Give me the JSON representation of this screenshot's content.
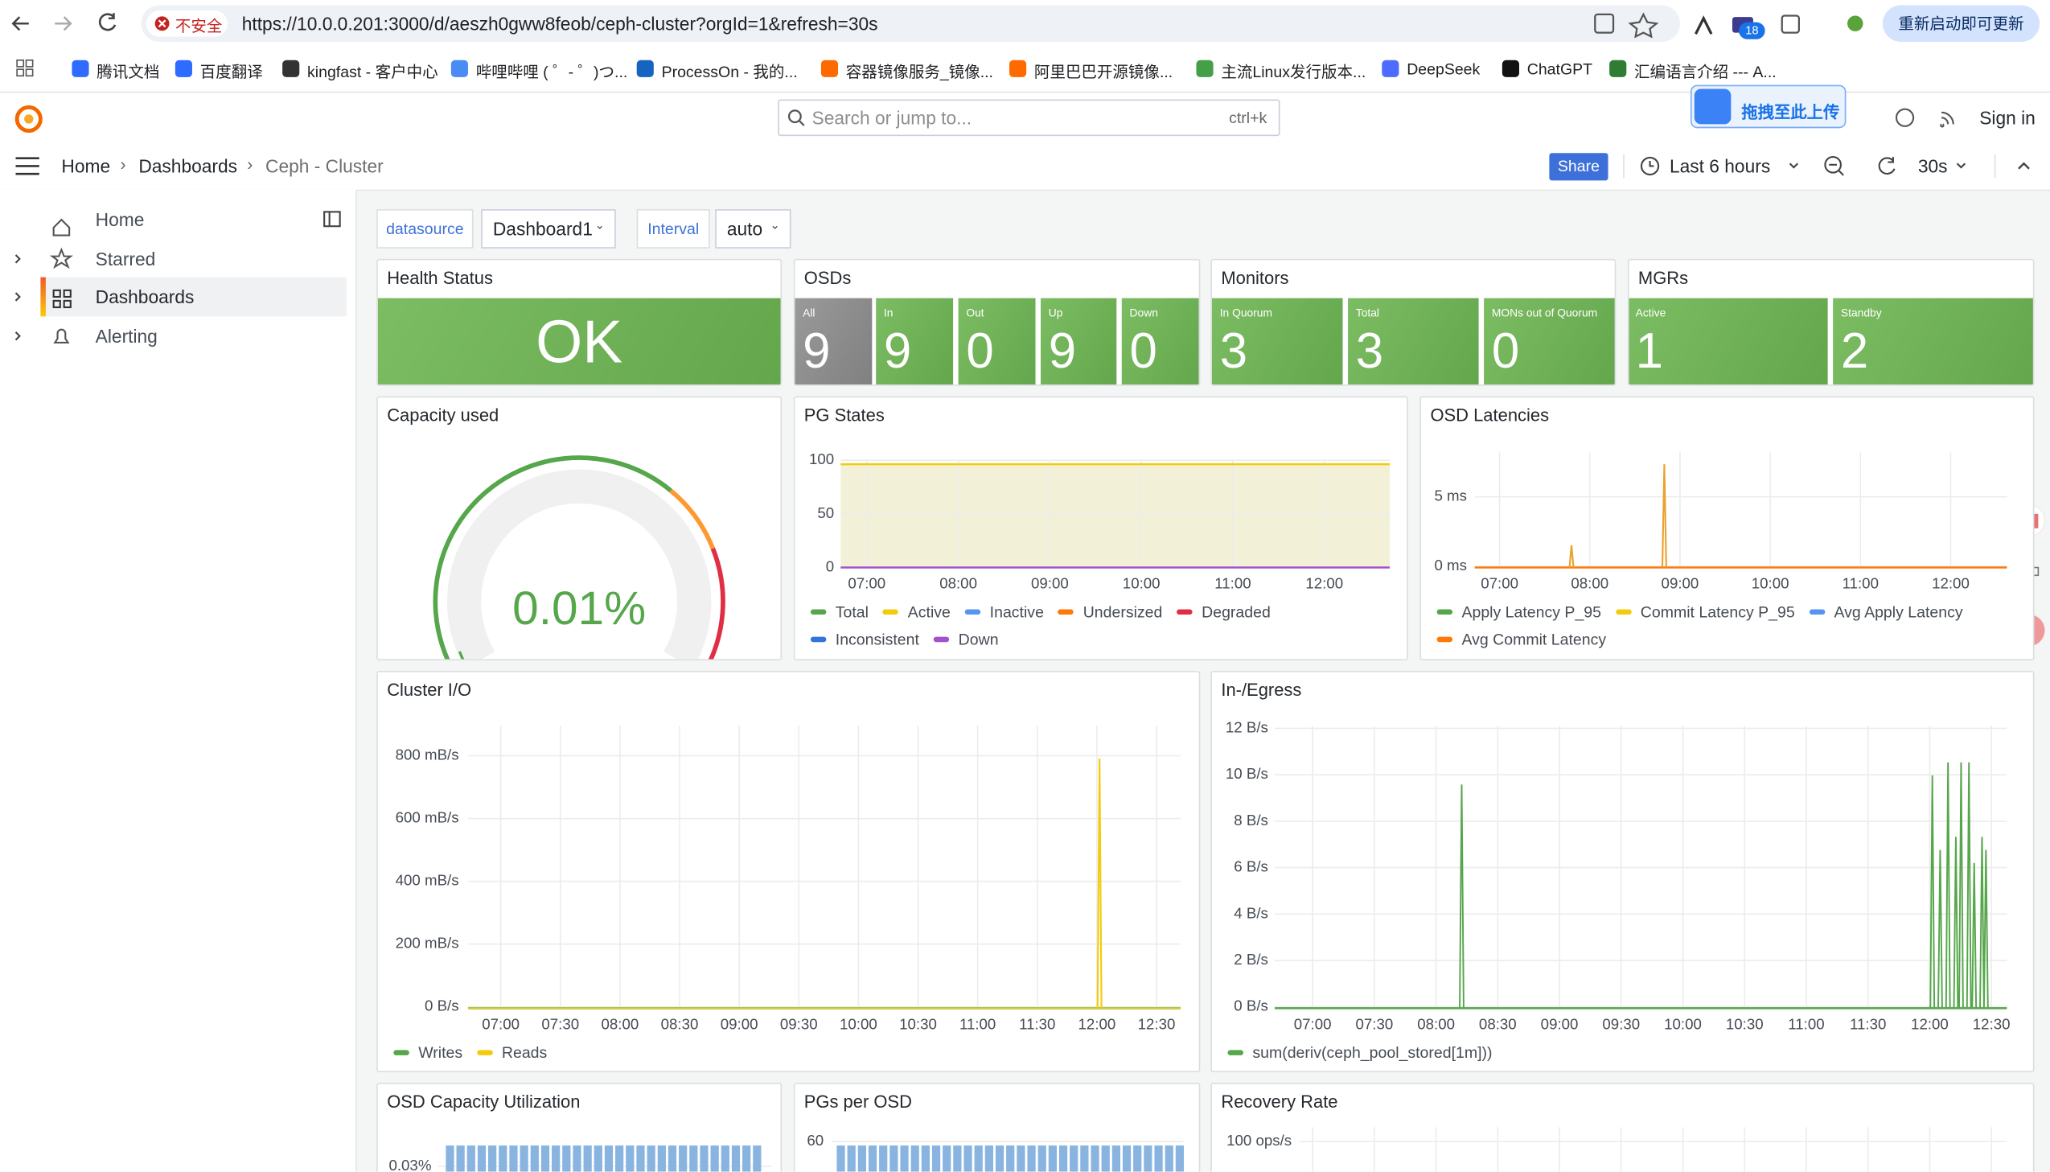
{
  "browser": {
    "insecure": "不安全",
    "url": "https://10.0.0.201:3000/d/aeszh0gww8feob/ceph-cluster?orgId=1&refresh=30s",
    "badge": "18",
    "update": "重新启动即可更新",
    "bookmarks": [
      "腾讯文档",
      "百度翻译",
      "kingfast - 客户中心",
      "哔哩哔哩 ( ゜- ゜)つ...",
      "ProcessOn - 我的...",
      "容器镜像服务_镜像...",
      "阿里巴巴开源镜像...",
      "主流Linux发行版本...",
      "DeepSeek",
      "ChatGPT",
      "汇编语言介绍 --- A..."
    ]
  },
  "topbar": {
    "search": "Search or jump to...",
    "shortcut": "ctrl+k",
    "upload": "拖拽至此上传",
    "sign_in": "Sign in"
  },
  "toolbar": {
    "breadcrumbs": [
      "Home",
      "Dashboards",
      "Ceph - Cluster"
    ],
    "share": "Share",
    "time_range": "Last 6 hours",
    "refresh": "30s"
  },
  "sidebar": {
    "items": [
      "Home",
      "Starred",
      "Dashboards",
      "Alerting"
    ]
  },
  "variables": [
    {
      "label": "datasource",
      "value": "Dashboard1"
    },
    {
      "label": "Interval",
      "value": "auto"
    }
  ],
  "panels": [
    {
      "title": "Health Status",
      "value": "OK"
    },
    {
      "title": "OSDs",
      "stats": [
        {
          "label": "All",
          "value": 9
        },
        {
          "label": "In",
          "value": 9
        },
        {
          "label": "Out",
          "value": 0
        },
        {
          "label": "Up",
          "value": 9
        },
        {
          "label": "Down",
          "value": 0
        }
      ]
    },
    {
      "title": "Monitors",
      "stats": [
        {
          "label": "In Quorum",
          "value": 3
        },
        {
          "label": "Total",
          "value": 3
        },
        {
          "label": "MONs out of Quorum",
          "value": 0
        }
      ]
    },
    {
      "title": "MGRs",
      "stats": [
        {
          "label": "Active",
          "value": 1
        },
        {
          "label": "Standby",
          "value": 2
        }
      ]
    },
    {
      "title": "Capacity used",
      "value": "0.01%"
    },
    {
      "title": "PG States",
      "yticks": [
        "100",
        "50",
        "0"
      ],
      "xticks": [
        "07:00",
        "08:00",
        "09:00",
        "10:00",
        "11:00",
        "12:00"
      ],
      "legend": [
        {
          "name": "Total",
          "color": "#56a64b"
        },
        {
          "name": "Active",
          "color": "#f2cc0c"
        },
        {
          "name": "Inactive",
          "color": "#5794f2"
        },
        {
          "name": "Undersized",
          "color": "#ff780a"
        },
        {
          "name": "Degraded",
          "color": "#e02f44"
        },
        {
          "name": "Inconsistent",
          "color": "#3274d9"
        },
        {
          "name": "Down",
          "color": "#a352cc"
        }
      ]
    },
    {
      "title": "OSD Latencies",
      "yticks": [
        "5 ms",
        "0 ms"
      ],
      "xticks": [
        "07:00",
        "08:00",
        "09:00",
        "10:00",
        "11:00",
        "12:00"
      ],
      "legend": [
        {
          "name": "Apply Latency P_95",
          "color": "#56a64b"
        },
        {
          "name": "Commit Latency P_95",
          "color": "#f2cc0c"
        },
        {
          "name": "Avg Apply Latency",
          "color": "#5794f2"
        },
        {
          "name": "Avg Commit Latency",
          "color": "#ff780a"
        }
      ]
    },
    {
      "title": "Cluster I/O",
      "yticks": [
        "800 mB/s",
        "600 mB/s",
        "400 mB/s",
        "200 mB/s",
        "0 B/s"
      ],
      "xticks": [
        "07:00",
        "07:30",
        "08:00",
        "08:30",
        "09:00",
        "09:30",
        "10:00",
        "10:30",
        "11:00",
        "11:30",
        "12:00",
        "12:30"
      ],
      "legend": [
        {
          "name": "Writes",
          "color": "#56a64b"
        },
        {
          "name": "Reads",
          "color": "#f2cc0c"
        }
      ]
    },
    {
      "title": "In-/Egress",
      "yticks": [
        "12 B/s",
        "10 B/s",
        "8 B/s",
        "6 B/s",
        "4 B/s",
        "2 B/s",
        "0 B/s"
      ],
      "xticks": [
        "07:00",
        "07:30",
        "08:00",
        "08:30",
        "09:00",
        "09:30",
        "10:00",
        "10:30",
        "11:00",
        "11:30",
        "12:00",
        "12:30"
      ],
      "legend": [
        {
          "name": "sum(deriv(ceph_pool_stored[1m]))",
          "color": "#56a64b"
        }
      ]
    },
    {
      "title": "OSD Capacity Utilization",
      "yticks": [
        "0.03%"
      ]
    },
    {
      "title": "PGs per OSD",
      "yticks": [
        "60"
      ]
    },
    {
      "title": "Recovery Rate",
      "yticks": [
        "100 ops/s"
      ]
    }
  ]
}
